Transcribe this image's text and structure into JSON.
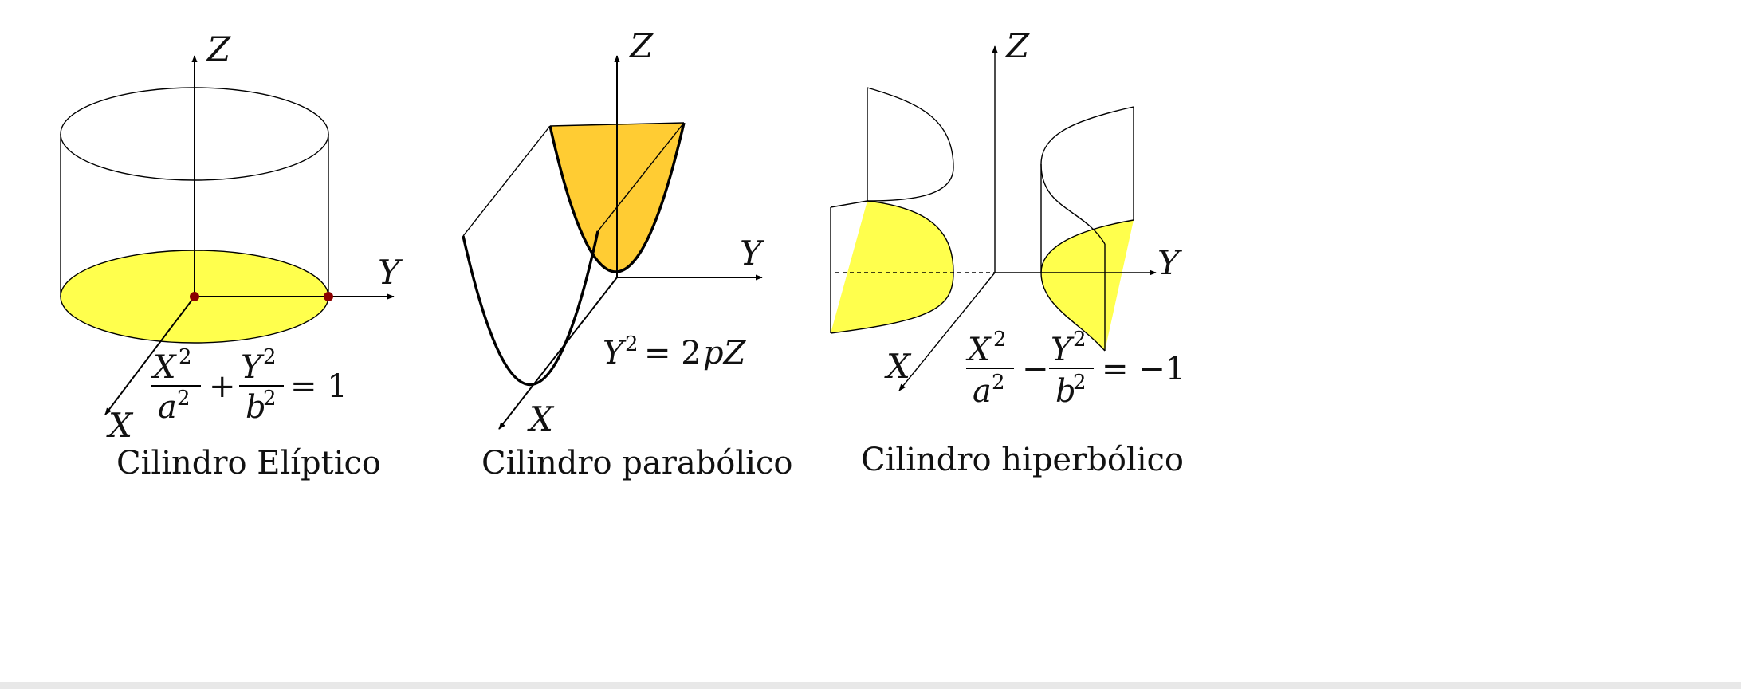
{
  "panels": [
    {
      "caption": "Cilindro Elíptico",
      "axes": {
        "z": "Z",
        "y": "Y",
        "x": "X"
      },
      "equation": {
        "num1": "X",
        "den1": "a",
        "op": "+",
        "num2": "Y",
        "den2": "b",
        "exp": "2",
        "rhs": "= 1"
      },
      "fill_color": "#ffff4d"
    },
    {
      "caption": "Cilindro parabólico",
      "axes": {
        "z": "Z",
        "y": "Y",
        "x": "X"
      },
      "equation": {
        "lhs": "Y",
        "exp": "2",
        "rhs": "= 2",
        "rhs_var": "pZ"
      },
      "fill_color": "#ffcc33"
    },
    {
      "caption": "Cilindro hiperbólico",
      "axes": {
        "z": "Z",
        "y": "Y",
        "x": "X"
      },
      "equation": {
        "num1": "X",
        "den1": "a",
        "op": "−",
        "num2": "Y",
        "den2": "b",
        "exp": "2",
        "rhs": "= −1"
      },
      "fill_color": "#ffff4d"
    }
  ],
  "colors": {
    "point": "#8b0000",
    "line": "#000000",
    "background": "#ffffff"
  }
}
